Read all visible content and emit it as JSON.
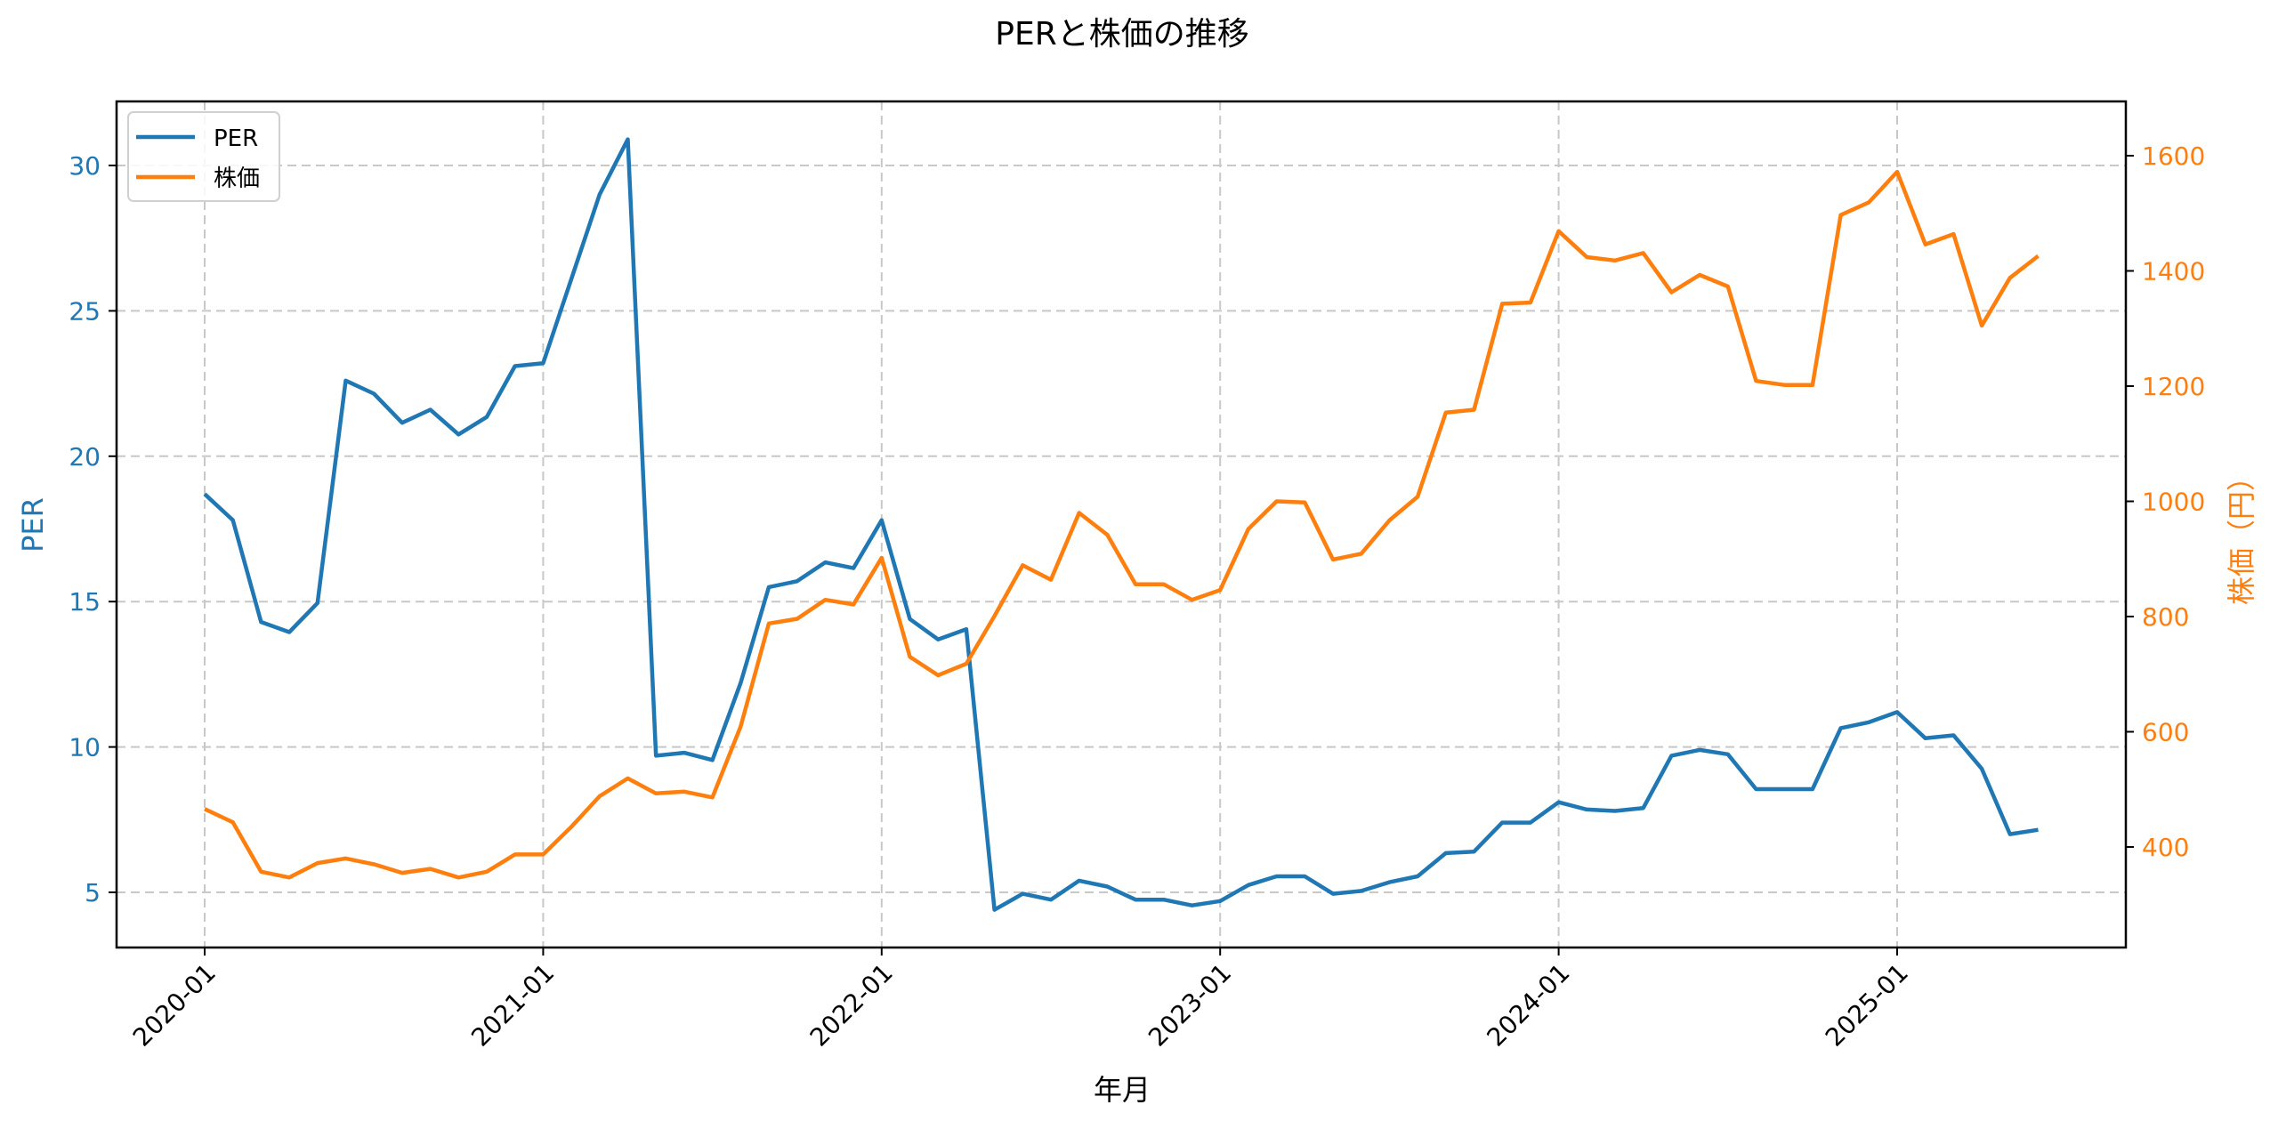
{
  "chart_data": {
    "type": "line",
    "title": "PERと株価の推移",
    "xlabel": "年月",
    "ylabel": "PER",
    "ylabel_right": "株価（円）",
    "x_tick_labels": [
      "2020-01",
      "2021-01",
      "2022-01",
      "2023-01",
      "2024-01",
      "2025-01"
    ],
    "y_ticks_left": [
      5,
      10,
      15,
      20,
      25,
      30
    ],
    "y_ticks_right": [
      400,
      600,
      800,
      1000,
      1200,
      1400,
      1600
    ],
    "ylim_left": [
      3.1,
      32.3
    ],
    "ylim_right": [
      230,
      1690
    ],
    "grid": true,
    "legend_position": "upper left",
    "x": [
      "2020-01",
      "2020-02",
      "2020-03",
      "2020-04",
      "2020-05",
      "2020-06",
      "2020-07",
      "2020-08",
      "2020-09",
      "2020-10",
      "2020-11",
      "2020-12",
      "2021-01",
      "2021-02",
      "2021-03",
      "2021-04",
      "2021-05",
      "2021-06",
      "2021-07",
      "2021-08",
      "2021-09",
      "2021-10",
      "2021-11",
      "2021-12",
      "2022-01",
      "2022-02",
      "2022-03",
      "2022-04",
      "2022-05",
      "2022-06",
      "2022-07",
      "2022-08",
      "2022-09",
      "2022-10",
      "2022-11",
      "2022-12",
      "2023-01",
      "2023-02",
      "2023-03",
      "2023-04",
      "2023-05",
      "2023-06",
      "2023-07",
      "2023-08",
      "2023-09",
      "2023-10",
      "2023-11",
      "2023-12",
      "2024-01",
      "2024-02",
      "2024-03",
      "2024-04",
      "2024-05",
      "2024-06",
      "2024-07",
      "2024-08",
      "2024-09",
      "2024-10",
      "2024-11",
      "2024-12",
      "2025-01",
      "2025-02",
      "2025-03",
      "2025-04",
      "2025-05",
      "2025-06"
    ],
    "series": [
      {
        "name": "PER",
        "axis": "left",
        "color": "#1f77b4",
        "values": [
          18.7,
          17.8,
          14.3,
          13.95,
          14.95,
          22.6,
          22.15,
          21.15,
          21.6,
          20.75,
          21.35,
          23.1,
          23.2,
          26.1,
          29.0,
          30.9,
          9.7,
          9.8,
          9.55,
          12.2,
          15.5,
          15.7,
          16.35,
          16.15,
          17.8,
          14.4,
          13.7,
          14.05,
          4.4,
          4.95,
          4.75,
          5.4,
          5.2,
          4.75,
          4.75,
          4.55,
          4.7,
          5.25,
          5.55,
          5.55,
          4.95,
          5.05,
          5.35,
          5.55,
          6.35,
          6.4,
          7.4,
          7.4,
          8.1,
          7.85,
          7.8,
          7.9,
          9.7,
          9.9,
          9.75,
          8.55,
          8.55,
          8.55,
          10.65,
          10.85,
          11.2,
          10.3,
          10.4,
          9.25,
          7.0,
          7.15
        ]
      },
      {
        "name": "株価",
        "axis": "right",
        "color": "#ff7f0e",
        "values": [
          466,
          443,
          357,
          347,
          372,
          380,
          370,
          355,
          362,
          347,
          357,
          387,
          387,
          435,
          488,
          519,
          493,
          496,
          486,
          609,
          788,
          796,
          829,
          821,
          902,
          730,
          698,
          718,
          801,
          889,
          864,
          980,
          942,
          856,
          856,
          829,
          846,
          952,
          1000,
          998,
          899,
          909,
          967,
          1008,
          1154,
          1159,
          1343,
          1345,
          1469,
          1424,
          1418,
          1431,
          1363,
          1393,
          1373,
          1209,
          1202,
          1202,
          1497,
          1519,
          1572,
          1446,
          1464,
          1305,
          1388,
          1426
        ]
      }
    ]
  },
  "legend": {
    "items": [
      {
        "label": "PER",
        "color": "#1f77b4"
      },
      {
        "label": "株価",
        "color": "#ff7f0e"
      }
    ]
  }
}
